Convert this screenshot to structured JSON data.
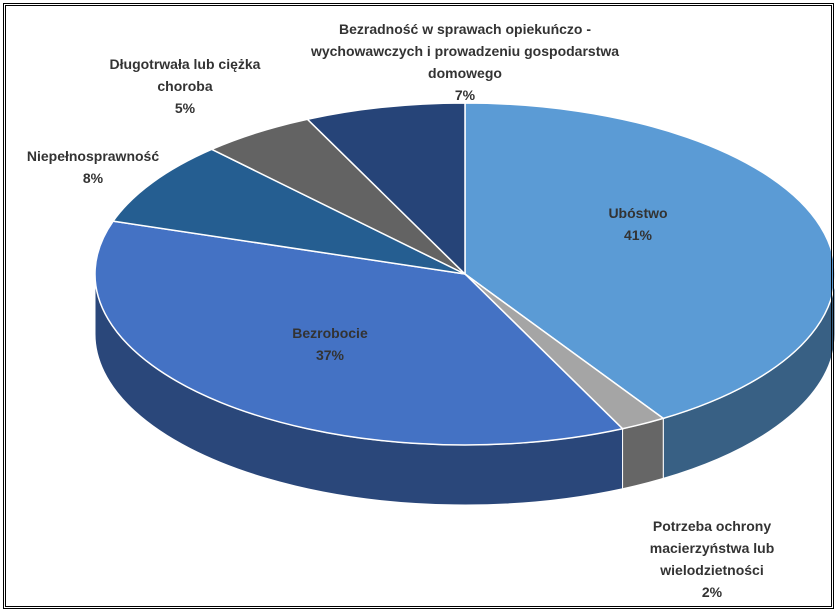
{
  "chart_data": {
    "type": "pie3d",
    "categories": [
      "Ubóstwo",
      "Potrzeba ochrony macierzyństwa lub wielodzietności",
      "Bezrobocie",
      "Niepełnosprawność",
      "Długotrwała lub ciężka choroba",
      "Bezradność w sprawach opiekuńczo - wychowawczych i prowadzeniu gospodarstwa domowego"
    ],
    "values": [
      41,
      2,
      37,
      8,
      5,
      7
    ],
    "value_labels": [
      "41%",
      "2%",
      "37%",
      "8%",
      "5%",
      "7%"
    ],
    "colors": [
      "#5b9bd5",
      "#a5a5a5",
      "#4472c4",
      "#255e91",
      "#636363",
      "#264478"
    ]
  }
}
